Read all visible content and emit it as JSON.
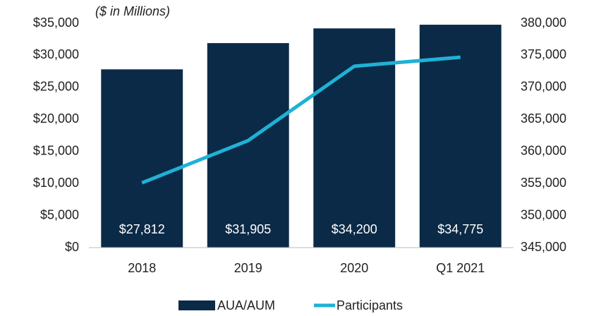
{
  "chart_data": {
    "type": "bar-line",
    "subtitle": "($ in Millions)",
    "categories": [
      "2018",
      "2019",
      "2020",
      "Q1 2021"
    ],
    "series": [
      {
        "name": "AUA/AUM",
        "type": "bar",
        "color": "#0b2a47",
        "axis": "y",
        "values": [
          27812,
          31905,
          34200,
          34775
        ],
        "value_labels": [
          "$27,812",
          "$31,905",
          "$34,200",
          "$34,775"
        ]
      },
      {
        "name": "Participants",
        "type": "line",
        "color": "#1fb1d6",
        "axis": "y2",
        "values": [
          355100,
          361700,
          373300,
          374700
        ]
      }
    ],
    "ylim": [
      0,
      35000
    ],
    "yticks": [
      {
        "value": 0,
        "label": "$0"
      },
      {
        "value": 5000,
        "label": "$5,000"
      },
      {
        "value": 10000,
        "label": "$10,000"
      },
      {
        "value": 15000,
        "label": "$15,000"
      },
      {
        "value": 20000,
        "label": "$20,000"
      },
      {
        "value": 25000,
        "label": "$25,000"
      },
      {
        "value": 30000,
        "label": "$30,000"
      },
      {
        "value": 35000,
        "label": "$35,000"
      }
    ],
    "y2lim": [
      345000,
      380000
    ],
    "y2ticks": [
      {
        "value": 345000,
        "label": "345,000"
      },
      {
        "value": 350000,
        "label": "350,000"
      },
      {
        "value": 355000,
        "label": "355,000"
      },
      {
        "value": 360000,
        "label": "360,000"
      },
      {
        "value": 365000,
        "label": "365,000"
      },
      {
        "value": 370000,
        "label": "370,000"
      },
      {
        "value": 375000,
        "label": "375,000"
      },
      {
        "value": 380000,
        "label": "380,000"
      }
    ],
    "grid": false,
    "legend": "bottom"
  }
}
